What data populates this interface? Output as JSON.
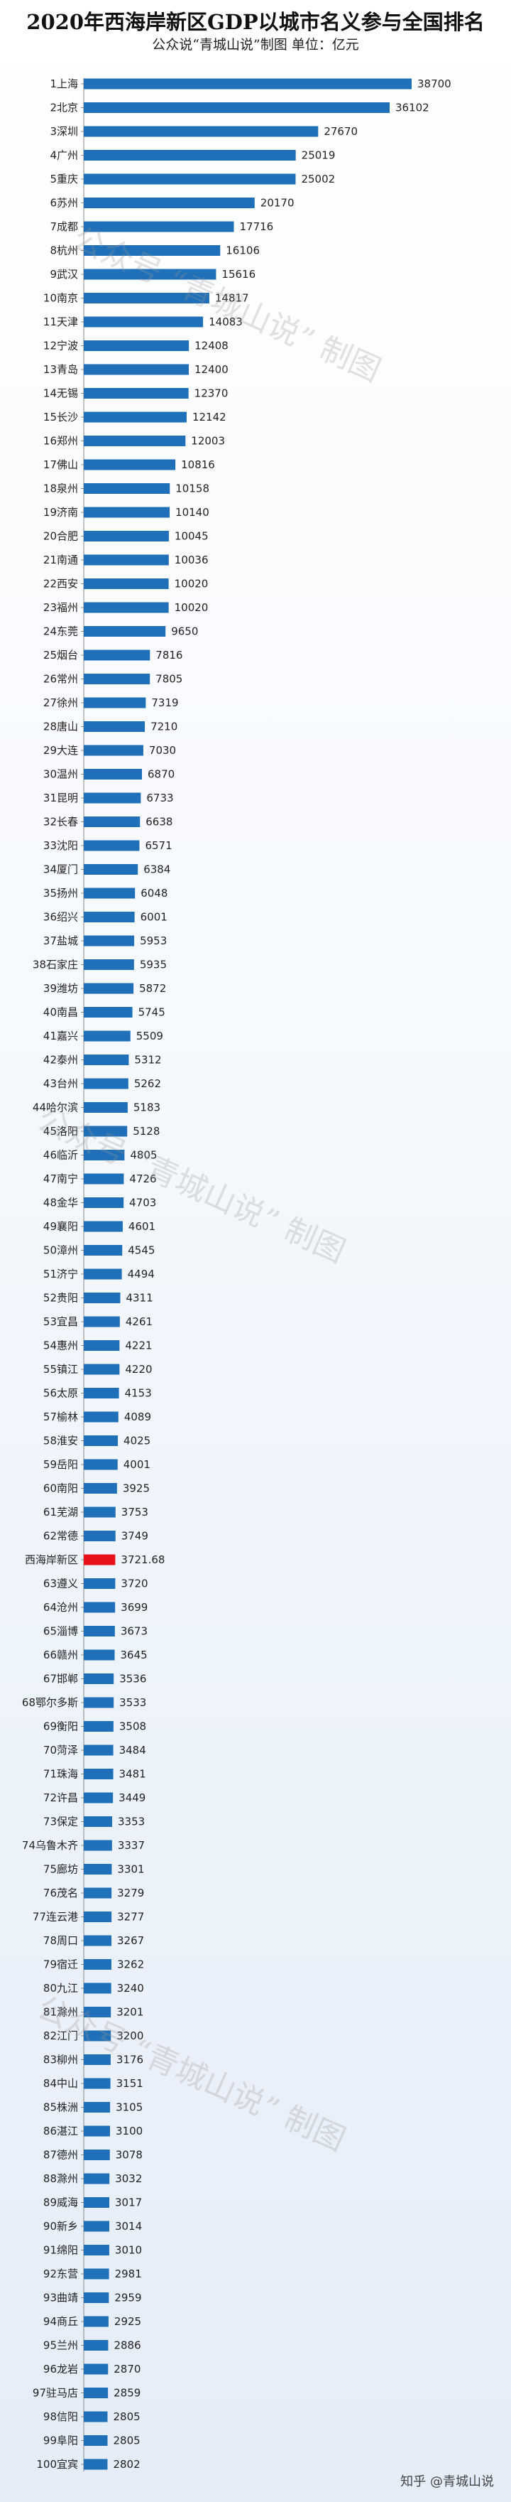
{
  "chart_data": {
    "type": "bar",
    "orientation": "horizontal",
    "title": "2020年西海岸新区GDP以城市名义参与全国排名",
    "subtitle": "公众说“青城山说”制图    单位：亿元",
    "categories": [
      "1上海",
      "2北京",
      "3深圳",
      "4广州",
      "5重庆",
      "6苏州",
      "7成都",
      "8杭州",
      "9武汉",
      "10南京",
      "11天津",
      "12宁波",
      "13青岛",
      "14无锡",
      "15长沙",
      "16郑州",
      "17佛山",
      "18泉州",
      "19济南",
      "20合肥",
      "21南通",
      "22西安",
      "23福州",
      "24东莞",
      "25烟台",
      "26常州",
      "27徐州",
      "28唐山",
      "29大连",
      "30温州",
      "31昆明",
      "32长春",
      "33沈阳",
      "34厦门",
      "35扬州",
      "36绍兴",
      "37盐城",
      "38石家庄",
      "39潍坊",
      "40南昌",
      "41嘉兴",
      "42泰州",
      "43台州",
      "44哈尔滨",
      "45洛阳",
      "46临沂",
      "47南宁",
      "48金华",
      "49襄阳",
      "50漳州",
      "51济宁",
      "52贵阳",
      "53宜昌",
      "54惠州",
      "55镇江",
      "56太原",
      "57榆林",
      "58淮安",
      "59岳阳",
      "60南阳",
      "61芜湖",
      "62常德",
      "西海岸新区",
      "63遵义",
      "64沧州",
      "65淄博",
      "66赣州",
      "67邯郸",
      "68鄂尔多斯",
      "69衡阳",
      "70菏泽",
      "71珠海",
      "72许昌",
      "73保定",
      "74乌鲁木齐",
      "75廊坊",
      "76茂名",
      "77连云港",
      "78周口",
      "79宿迁",
      "80九江",
      "81滁州",
      "82江门",
      "83柳州",
      "84中山",
      "85株洲",
      "86湛江",
      "87德州",
      "88滁州",
      "89威海",
      "90新乡",
      "91绵阳",
      "92东营",
      "93曲靖",
      "94商丘",
      "95兰州",
      "96龙岩",
      "97驻马店",
      "98信阳",
      "99阜阳",
      "100宜宾"
    ],
    "values": [
      38700,
      36102,
      27670,
      25019,
      25002,
      20170,
      17716,
      16106,
      15616,
      14817,
      14083,
      12408,
      12400,
      12370,
      12142,
      12003,
      10816,
      10158,
      10140,
      10045,
      10036,
      10020,
      10020,
      9650,
      7816,
      7805,
      7319,
      7210,
      7030,
      6870,
      6733,
      6638,
      6571,
      6384,
      6048,
      6001,
      5953,
      5935,
      5872,
      5745,
      5509,
      5312,
      5262,
      5183,
      5128,
      4805,
      4726,
      4703,
      4601,
      4545,
      4494,
      4311,
      4261,
      4221,
      4220,
      4153,
      4089,
      4025,
      4001,
      3925,
      3753,
      3749,
      3721.68,
      3720,
      3699,
      3673,
      3645,
      3536,
      3533,
      3508,
      3484,
      3481,
      3449,
      3353,
      3337,
      3301,
      3279,
      3277,
      3267,
      3262,
      3240,
      3201,
      3200,
      3176,
      3151,
      3105,
      3100,
      3078,
      3032,
      3017,
      3014,
      3010,
      2981,
      2959,
      2925,
      2886,
      2870,
      2859,
      2805,
      2805,
      2802
    ],
    "value_labels": [
      "38700",
      "36102",
      "27670",
      "25019",
      "25002",
      "20170",
      "17716",
      "16106",
      "15616",
      "14817",
      "14083",
      "12408",
      "12400",
      "12370",
      "12142",
      "12003",
      "10816",
      "10158",
      "10140",
      "10045",
      "10036",
      "10020",
      "10020",
      "9650",
      "7816",
      "7805",
      "7319",
      "7210",
      "7030",
      "6870",
      "6733",
      "6638",
      "6571",
      "6384",
      "6048",
      "6001",
      "5953",
      "5935",
      "5872",
      "5745",
      "5509",
      "5312",
      "5262",
      "5183",
      "5128",
      "4805",
      "4726",
      "4703",
      "4601",
      "4545",
      "4494",
      "4311",
      "4261",
      "4221",
      "4220",
      "4153",
      "4089",
      "4025",
      "4001",
      "3925",
      "3753",
      "3749",
      "3721.68",
      "3720",
      "3699",
      "3673",
      "3645",
      "3536",
      "3533",
      "3508",
      "3484",
      "3481",
      "3449",
      "3353",
      "3337",
      "3301",
      "3279",
      "3277",
      "3267",
      "3262",
      "3240",
      "3201",
      "3200",
      "3176",
      "3151",
      "3105",
      "3100",
      "3078",
      "3032",
      "3017",
      "3014",
      "3010",
      "2981",
      "2959",
      "2925",
      "2886",
      "2870",
      "2859",
      "2805",
      "2805",
      "2802"
    ],
    "highlight_category": "西海岸新区",
    "highlight_color": "#e8121c",
    "bar_color": "#1f70b8",
    "xlim": [
      0,
      38700
    ],
    "grid": false,
    "legend": "none"
  },
  "watermark": "公众号 “青城山说” 制图",
  "footer": "知乎 @青城山说"
}
